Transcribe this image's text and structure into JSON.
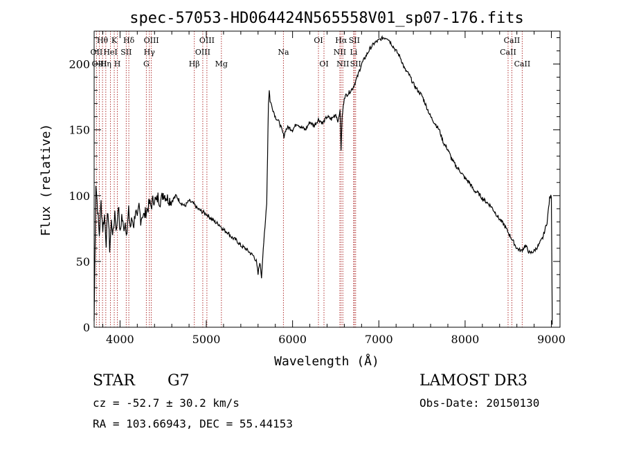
{
  "chart_data": {
    "type": "line",
    "title": "spec-57053-HD064424N565558V01_sp07-176.fits",
    "xlabel": "Wavelength (Å)",
    "ylabel": "Flux (relative)",
    "xlim": [
      3700,
      9100
    ],
    "ylim": [
      0,
      225
    ],
    "xticks": [
      4000,
      5000,
      6000,
      7000,
      8000,
      9000
    ],
    "yticks": [
      0,
      50,
      100,
      150,
      200
    ],
    "grid": false,
    "series": [
      {
        "x": [
          3700,
          3720,
          3740,
          3760,
          3780,
          3800,
          3820,
          3840,
          3860,
          3880,
          3900,
          3920,
          3940,
          3960,
          3980,
          4000,
          4020,
          4040,
          4060,
          4080,
          4100,
          4120,
          4140,
          4160,
          4180,
          4200,
          4220,
          4240,
          4260,
          4280,
          4300,
          4320,
          4340,
          4360,
          4380,
          4400,
          4420,
          4440,
          4460,
          4480,
          4500,
          4550,
          4600,
          4650,
          4700,
          4750,
          4800,
          4850,
          4900,
          4950,
          5000,
          5050,
          5100,
          5150,
          5200,
          5250,
          5300,
          5350,
          5400,
          5450,
          5500,
          5550,
          5580,
          5600,
          5620,
          5640,
          5660,
          5680,
          5700,
          5710,
          5720,
          5730,
          5740,
          5760,
          5780,
          5800,
          5850,
          5900,
          5920,
          5950,
          6000,
          6050,
          6100,
          6150,
          6200,
          6250,
          6300,
          6350,
          6400,
          6450,
          6500,
          6530,
          6550,
          6562,
          6575,
          6600,
          6650,
          6700,
          6750,
          6800,
          6850,
          6900,
          6950,
          7000,
          7050,
          7100,
          7150,
          7200,
          7250,
          7300,
          7350,
          7400,
          7450,
          7500,
          7550,
          7600,
          7650,
          7700,
          7750,
          7800,
          7850,
          7900,
          7950,
          8000,
          8050,
          8100,
          8150,
          8200,
          8250,
          8300,
          8350,
          8400,
          8450,
          8500,
          8550,
          8600,
          8650,
          8700,
          8750,
          8800,
          8850,
          8900,
          8950,
          8980,
          9000,
          9010
        ],
        "y": [
          5,
          110,
          90,
          70,
          95,
          75,
          85,
          65,
          90,
          60,
          80,
          70,
          88,
          72,
          95,
          70,
          85,
          75,
          80,
          72,
          88,
          76,
          82,
          78,
          90,
          80,
          92,
          82,
          86,
          84,
          88,
          90,
          94,
          92,
          96,
          98,
          95,
          99,
          96,
          97,
          102,
          98,
          96,
          100,
          95,
          92,
          96,
          94,
          90,
          88,
          86,
          83,
          80,
          78,
          74,
          72,
          68,
          66,
          62,
          60,
          57,
          54,
          50,
          40,
          50,
          38,
          60,
          75,
          95,
          130,
          170,
          180,
          172,
          168,
          164,
          160,
          155,
          145,
          150,
          152,
          150,
          155,
          152,
          150,
          156,
          153,
          158,
          155,
          160,
          158,
          162,
          156,
          166,
          135,
          160,
          175,
          178,
          182,
          190,
          200,
          206,
          212,
          216,
          218,
          220,
          220,
          215,
          210,
          205,
          196,
          192,
          185,
          180,
          176,
          168,
          160,
          155,
          150,
          140,
          135,
          127,
          122,
          118,
          113,
          110,
          104,
          102,
          98,
          95,
          92,
          87,
          82,
          78,
          72,
          66,
          60,
          58,
          62,
          56,
          58,
          62,
          68,
          80,
          98,
          100,
          2
        ]
      }
    ],
    "line_ids": [
      {
        "label": "Hθ",
        "x": 3797,
        "row": 1
      },
      {
        "label": "K",
        "x": 3933,
        "row": 1
      },
      {
        "label": "Hδ",
        "x": 4102,
        "row": 1
      },
      {
        "label": "OII",
        "x": 3727,
        "row": 2
      },
      {
        "label": "HeI",
        "x": 3889,
        "row": 2
      },
      {
        "label": "SII",
        "x": 4072,
        "row": 2
      },
      {
        "label": "OIII",
        "x": 3760,
        "row": 3
      },
      {
        "label": "Hη",
        "x": 3835,
        "row": 3
      },
      {
        "label": "H",
        "x": 3969,
        "row": 3
      },
      {
        "label": "OIII",
        "x": 4363,
        "row": 1
      },
      {
        "label": "Hγ",
        "x": 4340,
        "row": 2
      },
      {
        "label": "G",
        "x": 4305,
        "row": 3
      },
      {
        "label": "OIII",
        "x": 5007,
        "row": 1
      },
      {
        "label": "OIII",
        "x": 4959,
        "row": 2
      },
      {
        "label": "Hβ",
        "x": 4861,
        "row": 3
      },
      {
        "label": "Mg",
        "x": 5175,
        "row": 3
      },
      {
        "label": "Na",
        "x": 5894,
        "row": 2
      },
      {
        "label": "OI",
        "x": 6300,
        "row": 1
      },
      {
        "label": "OI",
        "x": 6364,
        "row": 3
      },
      {
        "label": "Hα",
        "x": 6563,
        "row": 1
      },
      {
        "label": "SII",
        "x": 6716,
        "row": 1
      },
      {
        "label": "NII",
        "x": 6548,
        "row": 2
      },
      {
        "label": "Li",
        "x": 6708,
        "row": 2
      },
      {
        "label": "NII",
        "x": 6583,
        "row": 3
      },
      {
        "label": "SII",
        "x": 6731,
        "row": 3
      },
      {
        "label": "CaII",
        "x": 8542,
        "row": 1
      },
      {
        "label": "CaII",
        "x": 8498,
        "row": 2
      },
      {
        "label": "CaII",
        "x": 8662,
        "row": 3
      }
    ]
  },
  "info": {
    "object_type": "STAR",
    "subclass": "G7",
    "survey": "LAMOST DR3",
    "cz": "cz = -52.7 ± 30.2 km/s",
    "obs_date": "Obs-Date: 20150130",
    "coords": "RA = 103.66943, DEC =  55.44153"
  }
}
